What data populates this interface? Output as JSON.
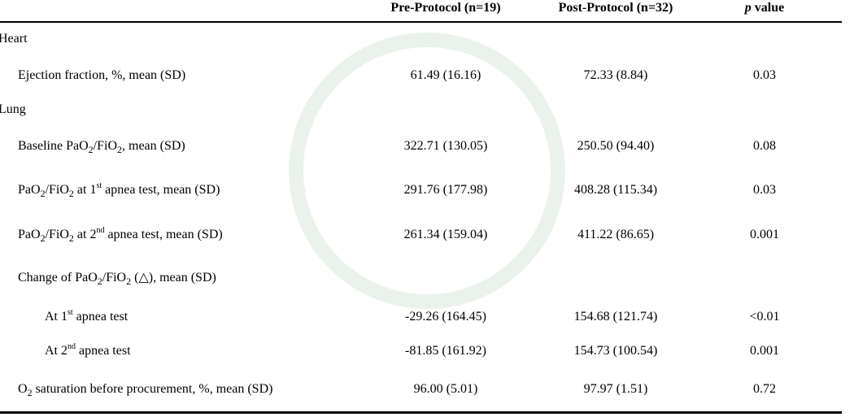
{
  "header": {
    "pre": "Pre-Protocol (n=19)",
    "post": "Post-Protocol (n=32)",
    "p": [
      "p",
      " value"
    ]
  },
  "rows": [
    {
      "section": "Heart"
    },
    {
      "label": [
        "Ejection fraction, %, mean (SD)"
      ],
      "pre": "61.49 (16.16)",
      "post": "72.33 (8.84)",
      "p": "0.03"
    },
    {
      "section": "Lung"
    },
    {
      "label": [
        "Baseline PaO",
        "2",
        "/FiO",
        "2",
        ", mean (SD)"
      ],
      "pre": "322.71 (130.05)",
      "post": "250.50 (94.40)",
      "p": "0.08"
    },
    {
      "label": [
        "PaO",
        "2",
        "/FiO",
        "2",
        " at 1",
        "st",
        " apnea test, mean (SD)"
      ],
      "pre": "291.76 (177.98)",
      "post": "408.28 (115.34)",
      "p": "0.03"
    },
    {
      "label": [
        "PaO",
        "2",
        "/FiO",
        "2",
        " at 2",
        "nd",
        " apnea test, mean (SD)"
      ],
      "pre": "261.34 (159.04)",
      "post": "411.22 (86.65)",
      "p": "0.001"
    },
    {
      "label": [
        "Change of PaO",
        "2",
        "/FiO",
        "2",
        " (△), mean (SD)"
      ]
    },
    {
      "label": [
        "At 1",
        "st",
        " apnea test"
      ],
      "pre": "-29.26 (164.45)",
      "post": "154.68 (121.74)",
      "p": "<0.01"
    },
    {
      "label": [
        "At 2",
        "nd",
        " apnea test"
      ],
      "pre": "-81.85 (161.92)",
      "post": "154.73 (100.54)",
      "p": "0.001"
    },
    {
      "label": [
        "O",
        "2",
        " saturation before procurement, %, mean (SD)"
      ],
      "pre": "96.00 (5.01)",
      "post": "97.97 (1.51)",
      "p": "0.72"
    }
  ]
}
